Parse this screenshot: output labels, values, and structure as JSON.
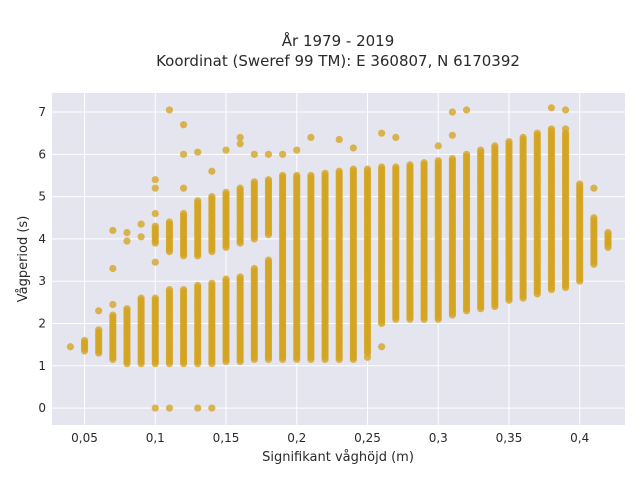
{
  "chart_data": {
    "type": "scatter",
    "title": "År 1979 - 2019",
    "subtitle": "Koordinat (Sweref 99 TM): E 360807, N 6170392",
    "xlabel": "Signifikant våghöjd (m)",
    "ylabel": "Vågperiod (s)",
    "xlim": [
      0.027,
      0.432
    ],
    "ylim": [
      -0.4,
      7.45
    ],
    "x_ticks": [
      0.05,
      0.1,
      0.15,
      0.2,
      0.25,
      0.3,
      0.35,
      0.4
    ],
    "x_tick_labels": [
      "0,05",
      "0,1",
      "0,15",
      "0,2",
      "0,25",
      "0,3",
      "0,35",
      "0,4"
    ],
    "y_ticks": [
      0,
      1,
      2,
      3,
      4,
      5,
      6,
      7
    ],
    "y_tick_labels": [
      "0",
      "1",
      "2",
      "3",
      "4",
      "5",
      "6",
      "7"
    ],
    "grid": true,
    "marker_color": "#D4A420",
    "background_color": "#E5E5EF",
    "columns": [
      {
        "x": 0.04,
        "y_min": 1.45,
        "y_max": 1.45
      },
      {
        "x": 0.05,
        "y_min": 1.35,
        "y_max": 1.6
      },
      {
        "x": 0.06,
        "y_min": 1.3,
        "y_max": 1.85
      },
      {
        "x": 0.07,
        "y_min": 1.15,
        "y_max": 2.2
      },
      {
        "x": 0.08,
        "y_min": 1.05,
        "y_max": 2.3
      },
      {
        "x": 0.09,
        "y_min": 1.05,
        "y_max": 2.6
      },
      {
        "x": 0.1,
        "y_min": 1.05,
        "y_max": 2.6
      },
      {
        "x": 0.11,
        "y_min": 1.05,
        "y_max": 2.8
      },
      {
        "x": 0.12,
        "y_min": 1.05,
        "y_max": 2.8
      },
      {
        "x": 0.13,
        "y_min": 1.05,
        "y_max": 2.9
      },
      {
        "x": 0.14,
        "y_min": 1.05,
        "y_max": 2.95
      },
      {
        "x": 0.15,
        "y_min": 1.1,
        "y_max": 3.05
      },
      {
        "x": 0.16,
        "y_min": 1.1,
        "y_max": 3.1
      },
      {
        "x": 0.17,
        "y_min": 1.15,
        "y_max": 3.3
      },
      {
        "x": 0.18,
        "y_min": 1.15,
        "y_max": 3.5
      },
      {
        "x": 0.19,
        "y_min": 1.15,
        "y_max": 5.5
      },
      {
        "x": 0.2,
        "y_min": 1.15,
        "y_max": 5.5
      },
      {
        "x": 0.21,
        "y_min": 1.15,
        "y_max": 5.5
      },
      {
        "x": 0.22,
        "y_min": 1.15,
        "y_max": 5.55
      },
      {
        "x": 0.23,
        "y_min": 1.15,
        "y_max": 5.6
      },
      {
        "x": 0.24,
        "y_min": 1.15,
        "y_max": 5.65
      },
      {
        "x": 0.25,
        "y_min": 1.3,
        "y_max": 5.65
      },
      {
        "x": 0.26,
        "y_min": 2.0,
        "y_max": 5.7
      },
      {
        "x": 0.27,
        "y_min": 2.1,
        "y_max": 5.7
      },
      {
        "x": 0.28,
        "y_min": 2.1,
        "y_max": 5.75
      },
      {
        "x": 0.29,
        "y_min": 2.1,
        "y_max": 5.8
      },
      {
        "x": 0.3,
        "y_min": 2.1,
        "y_max": 5.85
      },
      {
        "x": 0.31,
        "y_min": 2.2,
        "y_max": 5.9
      },
      {
        "x": 0.32,
        "y_min": 2.3,
        "y_max": 6.0
      },
      {
        "x": 0.33,
        "y_min": 2.35,
        "y_max": 6.1
      },
      {
        "x": 0.34,
        "y_min": 2.4,
        "y_max": 6.2
      },
      {
        "x": 0.35,
        "y_min": 2.55,
        "y_max": 6.3
      },
      {
        "x": 0.36,
        "y_min": 2.6,
        "y_max": 6.4
      },
      {
        "x": 0.37,
        "y_min": 2.7,
        "y_max": 6.5
      },
      {
        "x": 0.38,
        "y_min": 2.8,
        "y_max": 6.6
      },
      {
        "x": 0.39,
        "y_min": 2.85,
        "y_max": 6.5
      },
      {
        "x": 0.4,
        "y_min": 3.0,
        "y_max": 5.3
      },
      {
        "x": 0.41,
        "y_min": 3.4,
        "y_max": 4.5
      },
      {
        "x": 0.42,
        "y_min": 3.8,
        "y_max": 4.15
      }
    ],
    "upper_columns": [
      {
        "x": 0.1,
        "y_min": 3.9,
        "y_max": 4.3
      },
      {
        "x": 0.11,
        "y_min": 3.7,
        "y_max": 4.4
      },
      {
        "x": 0.12,
        "y_min": 3.6,
        "y_max": 4.6
      },
      {
        "x": 0.13,
        "y_min": 3.6,
        "y_max": 4.9
      },
      {
        "x": 0.14,
        "y_min": 3.7,
        "y_max": 5.0
      },
      {
        "x": 0.15,
        "y_min": 3.8,
        "y_max": 5.1
      },
      {
        "x": 0.16,
        "y_min": 3.9,
        "y_max": 5.2
      },
      {
        "x": 0.17,
        "y_min": 4.0,
        "y_max": 5.35
      },
      {
        "x": 0.18,
        "y_min": 4.1,
        "y_max": 5.4
      }
    ],
    "scattered_points": [
      {
        "x": 0.11,
        "y": 7.05
      },
      {
        "x": 0.12,
        "y": 6.7
      },
      {
        "x": 0.12,
        "y": 6.0
      },
      {
        "x": 0.13,
        "y": 6.05
      },
      {
        "x": 0.14,
        "y": 5.6
      },
      {
        "x": 0.12,
        "y": 5.2
      },
      {
        "x": 0.1,
        "y": 5.4
      },
      {
        "x": 0.1,
        "y": 5.2
      },
      {
        "x": 0.1,
        "y": 4.6
      },
      {
        "x": 0.1,
        "y": 3.45
      },
      {
        "x": 0.09,
        "y": 4.35
      },
      {
        "x": 0.09,
        "y": 4.05
      },
      {
        "x": 0.08,
        "y": 4.15
      },
      {
        "x": 0.08,
        "y": 3.95
      },
      {
        "x": 0.07,
        "y": 4.2
      },
      {
        "x": 0.07,
        "y": 3.3
      },
      {
        "x": 0.06,
        "y": 2.3
      },
      {
        "x": 0.07,
        "y": 2.45
      },
      {
        "x": 0.08,
        "y": 2.35
      },
      {
        "x": 0.15,
        "y": 6.1
      },
      {
        "x": 0.16,
        "y": 6.25
      },
      {
        "x": 0.16,
        "y": 6.4
      },
      {
        "x": 0.17,
        "y": 6.0
      },
      {
        "x": 0.18,
        "y": 6.0
      },
      {
        "x": 0.19,
        "y": 6.0
      },
      {
        "x": 0.2,
        "y": 6.1
      },
      {
        "x": 0.21,
        "y": 6.4
      },
      {
        "x": 0.23,
        "y": 6.35
      },
      {
        "x": 0.24,
        "y": 6.15
      },
      {
        "x": 0.26,
        "y": 6.5
      },
      {
        "x": 0.27,
        "y": 6.4
      },
      {
        "x": 0.3,
        "y": 6.2
      },
      {
        "x": 0.31,
        "y": 6.45
      },
      {
        "x": 0.31,
        "y": 7.0
      },
      {
        "x": 0.32,
        "y": 7.05
      },
      {
        "x": 0.38,
        "y": 7.1
      },
      {
        "x": 0.39,
        "y": 7.05
      },
      {
        "x": 0.39,
        "y": 6.6
      },
      {
        "x": 0.41,
        "y": 5.2
      },
      {
        "x": 0.25,
        "y": 1.2
      },
      {
        "x": 0.26,
        "y": 1.45
      },
      {
        "x": 0.1,
        "y": 0.0
      },
      {
        "x": 0.11,
        "y": 0.0
      },
      {
        "x": 0.13,
        "y": 0.0
      },
      {
        "x": 0.14,
        "y": 0.0
      },
      {
        "x": 0.42,
        "y": 3.9
      }
    ]
  }
}
